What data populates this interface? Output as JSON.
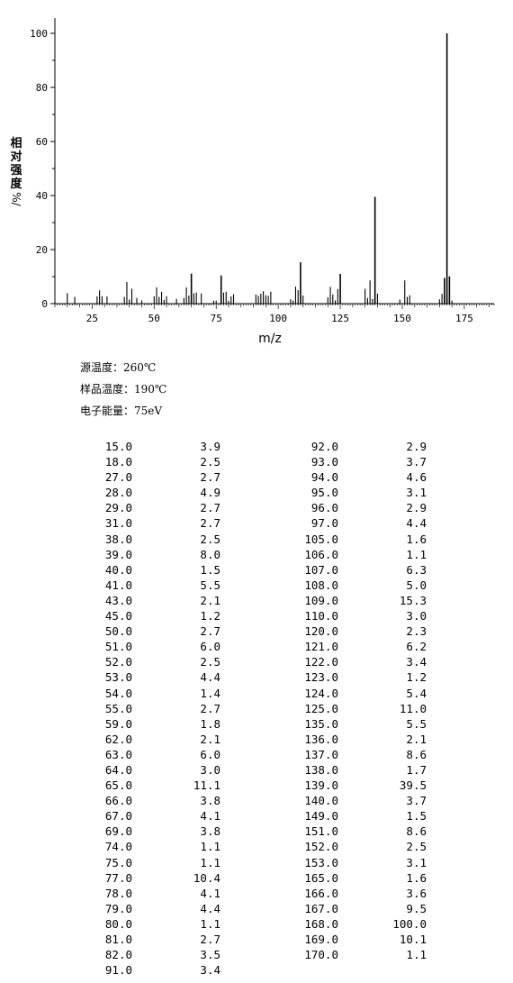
{
  "chart_data": {
    "type": "bar",
    "xlabel": "m/z",
    "ylabel": "相对强度",
    "ylabel_unit": "%/",
    "xlim": [
      10,
      187
    ],
    "ylim": [
      0,
      100
    ],
    "xticks": [
      25,
      50,
      75,
      100,
      125,
      150,
      175
    ],
    "yticks": [
      0,
      20,
      40,
      60,
      80,
      100
    ],
    "grid": false,
    "color": "#000000",
    "peaks": [
      {
        "mz": 15.0,
        "intensity": 3.9
      },
      {
        "mz": 18.0,
        "intensity": 2.5
      },
      {
        "mz": 27.0,
        "intensity": 2.7
      },
      {
        "mz": 28.0,
        "intensity": 4.9
      },
      {
        "mz": 29.0,
        "intensity": 2.7
      },
      {
        "mz": 31.0,
        "intensity": 2.7
      },
      {
        "mz": 38.0,
        "intensity": 2.5
      },
      {
        "mz": 39.0,
        "intensity": 8.0
      },
      {
        "mz": 40.0,
        "intensity": 1.5
      },
      {
        "mz": 41.0,
        "intensity": 5.5
      },
      {
        "mz": 43.0,
        "intensity": 2.1
      },
      {
        "mz": 45.0,
        "intensity": 1.2
      },
      {
        "mz": 50.0,
        "intensity": 2.7
      },
      {
        "mz": 51.0,
        "intensity": 6.0
      },
      {
        "mz": 52.0,
        "intensity": 2.5
      },
      {
        "mz": 53.0,
        "intensity": 4.4
      },
      {
        "mz": 54.0,
        "intensity": 1.4
      },
      {
        "mz": 55.0,
        "intensity": 2.7
      },
      {
        "mz": 59.0,
        "intensity": 1.8
      },
      {
        "mz": 62.0,
        "intensity": 2.1
      },
      {
        "mz": 63.0,
        "intensity": 6.0
      },
      {
        "mz": 64.0,
        "intensity": 3.0
      },
      {
        "mz": 65.0,
        "intensity": 11.1
      },
      {
        "mz": 66.0,
        "intensity": 3.8
      },
      {
        "mz": 67.0,
        "intensity": 4.1
      },
      {
        "mz": 69.0,
        "intensity": 3.8
      },
      {
        "mz": 74.0,
        "intensity": 1.1
      },
      {
        "mz": 75.0,
        "intensity": 1.1
      },
      {
        "mz": 77.0,
        "intensity": 10.4
      },
      {
        "mz": 78.0,
        "intensity": 4.1
      },
      {
        "mz": 79.0,
        "intensity": 4.4
      },
      {
        "mz": 80.0,
        "intensity": 1.1
      },
      {
        "mz": 81.0,
        "intensity": 2.7
      },
      {
        "mz": 82.0,
        "intensity": 3.5
      },
      {
        "mz": 91.0,
        "intensity": 3.4
      },
      {
        "mz": 92.0,
        "intensity": 2.9
      },
      {
        "mz": 93.0,
        "intensity": 3.7
      },
      {
        "mz": 94.0,
        "intensity": 4.6
      },
      {
        "mz": 95.0,
        "intensity": 3.1
      },
      {
        "mz": 96.0,
        "intensity": 2.9
      },
      {
        "mz": 97.0,
        "intensity": 4.4
      },
      {
        "mz": 105.0,
        "intensity": 1.6
      },
      {
        "mz": 106.0,
        "intensity": 1.1
      },
      {
        "mz": 107.0,
        "intensity": 6.3
      },
      {
        "mz": 108.0,
        "intensity": 5.0
      },
      {
        "mz": 109.0,
        "intensity": 15.3
      },
      {
        "mz": 110.0,
        "intensity": 3.0
      },
      {
        "mz": 120.0,
        "intensity": 2.3
      },
      {
        "mz": 121.0,
        "intensity": 6.2
      },
      {
        "mz": 122.0,
        "intensity": 3.4
      },
      {
        "mz": 123.0,
        "intensity": 1.2
      },
      {
        "mz": 124.0,
        "intensity": 5.4
      },
      {
        "mz": 125.0,
        "intensity": 11.0
      },
      {
        "mz": 135.0,
        "intensity": 5.5
      },
      {
        "mz": 136.0,
        "intensity": 2.1
      },
      {
        "mz": 137.0,
        "intensity": 8.6
      },
      {
        "mz": 138.0,
        "intensity": 1.7
      },
      {
        "mz": 139.0,
        "intensity": 39.5
      },
      {
        "mz": 140.0,
        "intensity": 3.7
      },
      {
        "mz": 149.0,
        "intensity": 1.5
      },
      {
        "mz": 151.0,
        "intensity": 8.6
      },
      {
        "mz": 152.0,
        "intensity": 2.5
      },
      {
        "mz": 153.0,
        "intensity": 3.1
      },
      {
        "mz": 165.0,
        "intensity": 1.6
      },
      {
        "mz": 166.0,
        "intensity": 3.6
      },
      {
        "mz": 167.0,
        "intensity": 9.5
      },
      {
        "mz": 168.0,
        "intensity": 100.0
      },
      {
        "mz": 169.0,
        "intensity": 10.1
      },
      {
        "mz": 170.0,
        "intensity": 1.1
      }
    ]
  },
  "conditions": {
    "source_temp": "源温度：260℃",
    "sample_temp": "样品温度：190℃",
    "electron_energy": "电子能量：75eV"
  },
  "table": {
    "left": [
      [
        "15.0",
        "3.9"
      ],
      [
        "18.0",
        "2.5"
      ],
      [
        "27.0",
        "2.7"
      ],
      [
        "28.0",
        "4.9"
      ],
      [
        "29.0",
        "2.7"
      ],
      [
        "31.0",
        "2.7"
      ],
      [
        "38.0",
        "2.5"
      ],
      [
        "39.0",
        "8.0"
      ],
      [
        "40.0",
        "1.5"
      ],
      [
        "41.0",
        "5.5"
      ],
      [
        "43.0",
        "2.1"
      ],
      [
        "45.0",
        "1.2"
      ],
      [
        "50.0",
        "2.7"
      ],
      [
        "51.0",
        "6.0"
      ],
      [
        "52.0",
        "2.5"
      ],
      [
        "53.0",
        "4.4"
      ],
      [
        "54.0",
        "1.4"
      ],
      [
        "55.0",
        "2.7"
      ],
      [
        "59.0",
        "1.8"
      ],
      [
        "62.0",
        "2.1"
      ],
      [
        "63.0",
        "6.0"
      ],
      [
        "64.0",
        "3.0"
      ],
      [
        "65.0",
        "11.1"
      ],
      [
        "66.0",
        "3.8"
      ],
      [
        "67.0",
        "4.1"
      ],
      [
        "69.0",
        "3.8"
      ],
      [
        "74.0",
        "1.1"
      ],
      [
        "75.0",
        "1.1"
      ],
      [
        "77.0",
        "10.4"
      ],
      [
        "78.0",
        "4.1"
      ],
      [
        "79.0",
        "4.4"
      ],
      [
        "80.0",
        "1.1"
      ],
      [
        "81.0",
        "2.7"
      ],
      [
        "82.0",
        "3.5"
      ],
      [
        "91.0",
        "3.4"
      ]
    ],
    "right": [
      [
        "92.0",
        "2.9"
      ],
      [
        "93.0",
        "3.7"
      ],
      [
        "94.0",
        "4.6"
      ],
      [
        "95.0",
        "3.1"
      ],
      [
        "96.0",
        "2.9"
      ],
      [
        "97.0",
        "4.4"
      ],
      [
        "105.0",
        "1.6"
      ],
      [
        "106.0",
        "1.1"
      ],
      [
        "107.0",
        "6.3"
      ],
      [
        "108.0",
        "5.0"
      ],
      [
        "109.0",
        "15.3"
      ],
      [
        "110.0",
        "3.0"
      ],
      [
        "120.0",
        "2.3"
      ],
      [
        "121.0",
        "6.2"
      ],
      [
        "122.0",
        "3.4"
      ],
      [
        "123.0",
        "1.2"
      ],
      [
        "124.0",
        "5.4"
      ],
      [
        "125.0",
        "11.0"
      ],
      [
        "135.0",
        "5.5"
      ],
      [
        "136.0",
        "2.1"
      ],
      [
        "137.0",
        "8.6"
      ],
      [
        "138.0",
        "1.7"
      ],
      [
        "139.0",
        "39.5"
      ],
      [
        "140.0",
        "3.7"
      ],
      [
        "149.0",
        "1.5"
      ],
      [
        "151.0",
        "8.6"
      ],
      [
        "152.0",
        "2.5"
      ],
      [
        "153.0",
        "3.1"
      ],
      [
        "165.0",
        "1.6"
      ],
      [
        "166.0",
        "3.6"
      ],
      [
        "167.0",
        "9.5"
      ],
      [
        "168.0",
        "100.0"
      ],
      [
        "169.0",
        "10.1"
      ],
      [
        "170.0",
        "1.1"
      ]
    ]
  }
}
